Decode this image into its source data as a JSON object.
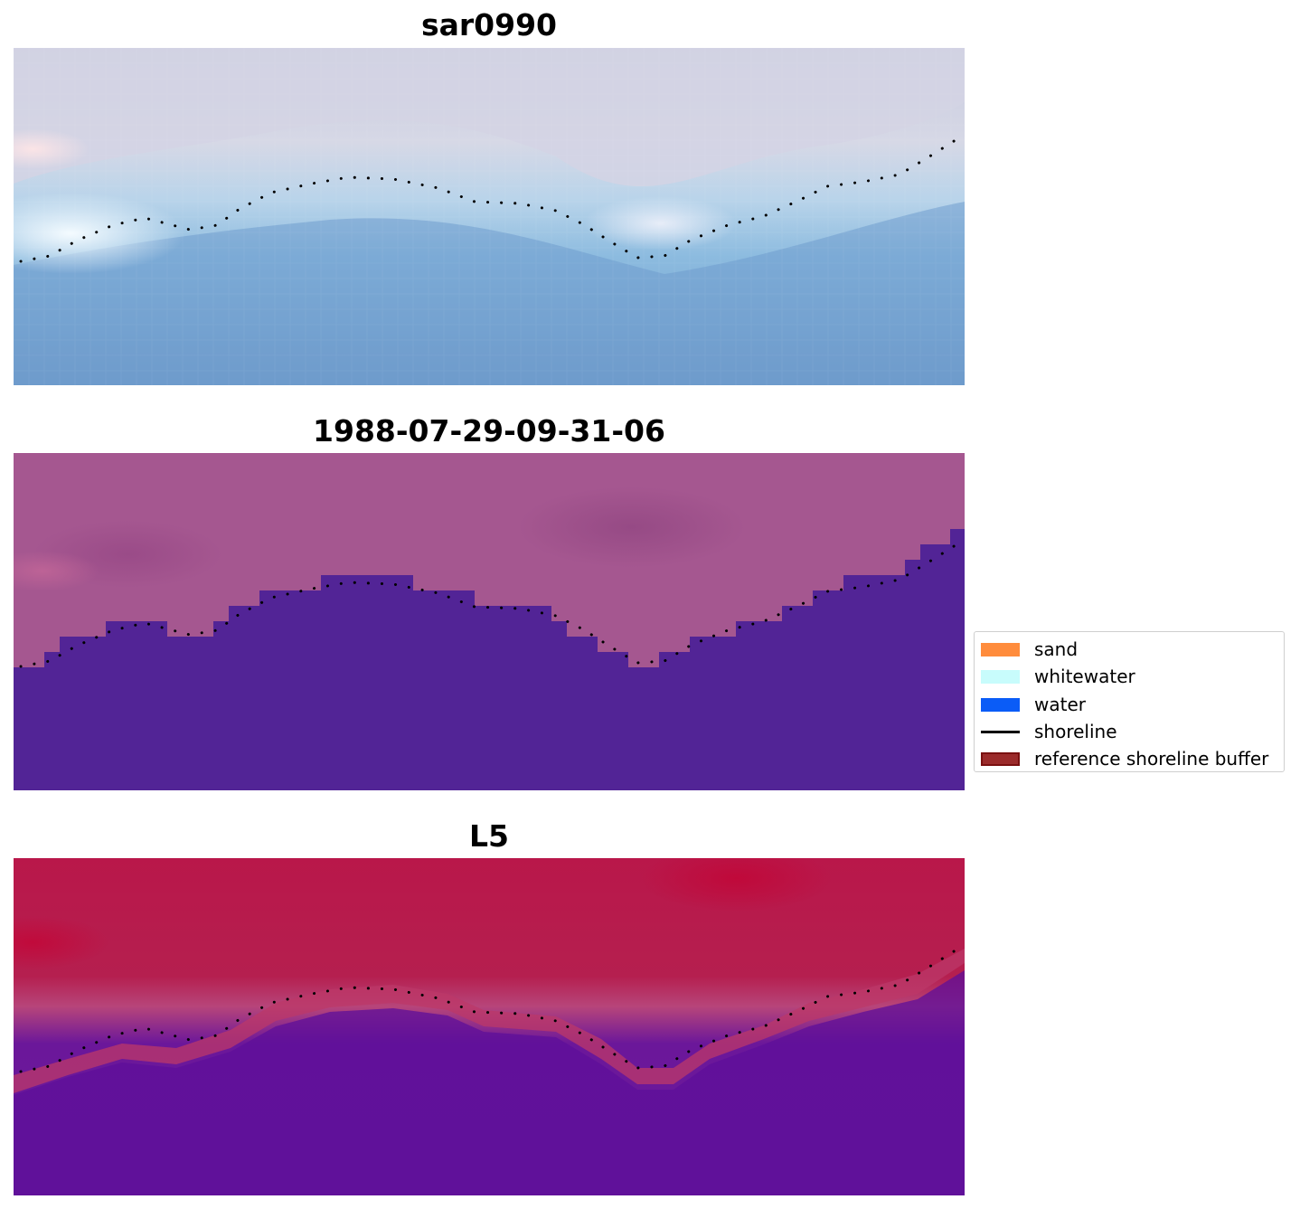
{
  "panels": [
    {
      "title": "sar0990",
      "kind": "rgb"
    },
    {
      "title": "1988-07-29-09-31-06",
      "kind": "classification"
    },
    {
      "title": "L5",
      "kind": "index"
    }
  ],
  "shoreline_color": "#000000",
  "legend": {
    "items": [
      {
        "label": "sand",
        "color": "#ff8c3c",
        "type": "patch"
      },
      {
        "label": "whitewater",
        "color": "#c8fcfc",
        "type": "patch"
      },
      {
        "label": "water",
        "color": "#0a5cf7",
        "type": "patch"
      },
      {
        "label": "shoreline",
        "color": "#000000",
        "type": "line"
      },
      {
        "label": "reference shoreline buffer",
        "color": "#9b2b2b",
        "type": "patch-outlined"
      }
    ]
  }
}
